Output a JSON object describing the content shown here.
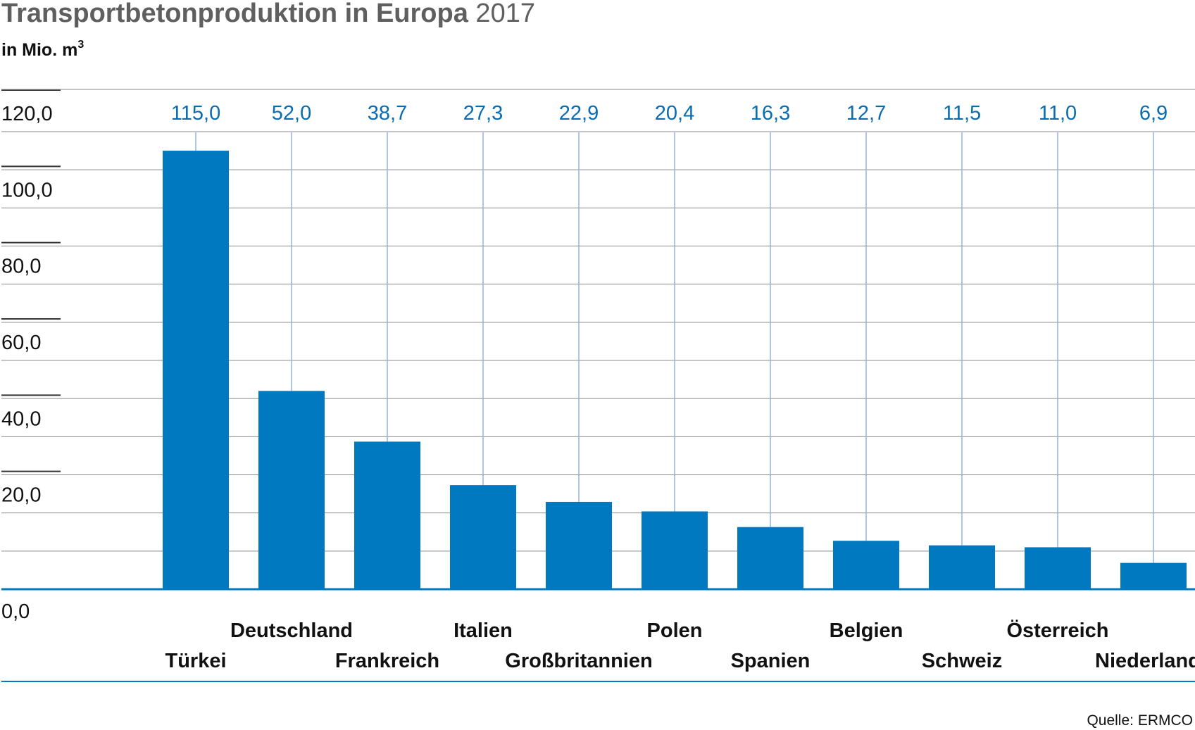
{
  "title": {
    "bold": "Transportbetonproduktion in Europa",
    "regular": " 2017"
  },
  "subtitle": {
    "text": "in Mio. m",
    "sup": "3"
  },
  "source": "Quelle: ERMCO",
  "colors": {
    "bar": "#0079c1",
    "value_label": "#0a6cb0",
    "guide": "#8fb6e0",
    "grid": "#8a8a8a",
    "tick": "#333333",
    "baseline": "#0079c1",
    "separator": "#0079c1",
    "title": "#5f5f5f",
    "text": "#111111"
  },
  "chart_data": {
    "type": "bar",
    "categories": [
      "Türkei",
      "Deutschland",
      "Frankreich",
      "Italien",
      "Großbritannien",
      "Polen",
      "Spanien",
      "Belgien",
      "Schweiz",
      "Österreich",
      "Niederlande"
    ],
    "values": [
      115.0,
      52.0,
      38.7,
      27.3,
      22.9,
      20.4,
      16.3,
      12.7,
      11.5,
      11.0,
      6.9
    ],
    "value_labels": [
      "115,0",
      "52,0",
      "38,7",
      "27,3",
      "22,9",
      "20,4",
      "16,3",
      "12,7",
      "11,5",
      "11,0",
      "6,9"
    ],
    "ylim": [
      0,
      120
    ],
    "yticks": [
      0,
      20,
      40,
      60,
      80,
      100,
      120
    ],
    "ytick_labels": [
      "0,0",
      "20,0",
      "40,0",
      "60,0",
      "80,0",
      "100,0",
      "120,0"
    ],
    "grid": true,
    "legend": "none"
  }
}
